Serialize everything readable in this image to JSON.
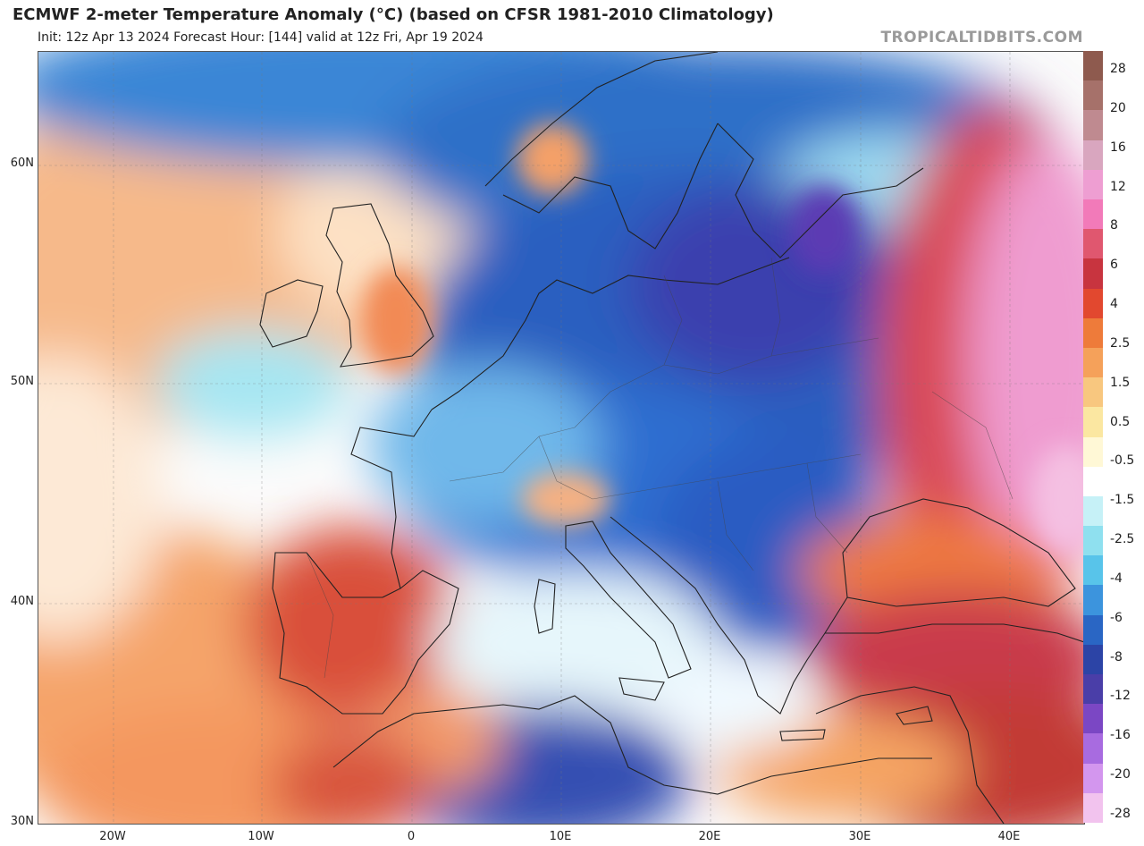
{
  "header": {
    "title": "ECMWF 2-meter Temperature Anomaly (°C) (based on CFSR 1981-2010 Climatology)",
    "subtitle": "Init: 12z Apr 13 2024    Forecast Hour: [144]    valid at 12z Fri, Apr 19 2024",
    "brand": "TROPICALTIDBITS.COM"
  },
  "map": {
    "lat_labels": [
      "60N",
      "50N",
      "40N",
      "30N"
    ],
    "lon_labels": [
      "20W",
      "10W",
      "0",
      "10E",
      "20E",
      "30E",
      "40E"
    ],
    "extent": {
      "lon_min": -25,
      "lon_max": 45,
      "lat_min": 30,
      "lat_max": 65
    }
  },
  "colorbar": {
    "ticks": [
      "28",
      "20",
      "16",
      "12",
      "8",
      "6",
      "4",
      "2.5",
      "1.5",
      "0.5",
      "-0.5",
      "-1.5",
      "-2.5",
      "-4",
      "-6",
      "-8",
      "-12",
      "-16",
      "-20",
      "-28"
    ],
    "colors": [
      "#8e5a4e",
      "#a6716a",
      "#bf8a90",
      "#d9a6bf",
      "#ee9ed2",
      "#f27ab9",
      "#e0576f",
      "#c8343f",
      "#e2482f",
      "#ee7b3a",
      "#f5a15a",
      "#f8c77f",
      "#fbe7a1",
      "#fff8d6",
      "#ffffff",
      "#c6f1f7",
      "#8fe0ef",
      "#58c4ea",
      "#3c94dd",
      "#2a66c4",
      "#2c44a6",
      "#4a3ea8",
      "#7b47c4",
      "#a86be0",
      "#d396ee",
      "#f2c3ee"
    ]
  }
}
